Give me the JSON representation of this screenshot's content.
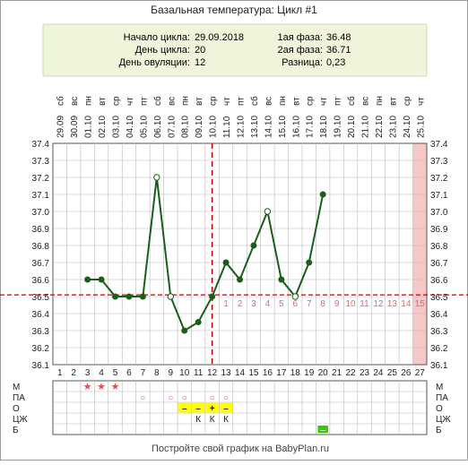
{
  "title": "Базальная температура: Цикл #1",
  "info": {
    "start_label": "Начало цикла:",
    "start_value": "29.09.2018",
    "day_label": "День цикла:",
    "day_value": "20",
    "ovulation_label": "День овуляции:",
    "ovulation_value": "12",
    "phase1_label": "1ая фаза:",
    "phase1_value": "36.48",
    "phase2_label": "2ая фаза:",
    "phase2_value": "36.71",
    "diff_label": "Разница:",
    "diff_value": "0,23"
  },
  "footer": "Постройте свой график на BabyPlan.ru",
  "colors": {
    "line": "#1a5e1a",
    "baseline": "#cc0000",
    "ovulation": "#cc0000",
    "highlight": "#f7c6c6",
    "info_bg": "#eef5da",
    "yellow": "#ffff00",
    "green": "#33cc00",
    "star": "#e05050",
    "grid": "#b8b8b8"
  },
  "chart_data": {
    "type": "line",
    "x": [
      1,
      2,
      3,
      4,
      5,
      6,
      7,
      8,
      9,
      10,
      11,
      12,
      13,
      14,
      15,
      16,
      17,
      18,
      19,
      20,
      21,
      22,
      23,
      24,
      25,
      26,
      27
    ],
    "weekdays": [
      "сб",
      "вс",
      "пн",
      "вт",
      "ср",
      "чт",
      "пт",
      "сб",
      "вс",
      "пн",
      "вт",
      "ср",
      "чт",
      "пт",
      "сб",
      "вс",
      "пн",
      "вт",
      "ср",
      "чт",
      "пт",
      "сб",
      "вс",
      "пн",
      "вт",
      "ср",
      "чт"
    ],
    "dates": [
      "29.09",
      "30.09",
      "01.10",
      "02.10",
      "03.10",
      "04.10",
      "05.10",
      "06.10",
      "07.10",
      "08.10",
      "09.10",
      "10.10",
      "11.10",
      "12.10",
      "13.10",
      "14.10",
      "15.10",
      "16.10",
      "17.10",
      "18.10",
      "19.10",
      "20.10",
      "21.10",
      "22.10",
      "23.10",
      "24.10",
      "25.10"
    ],
    "temperature": [
      null,
      null,
      36.6,
      36.6,
      36.5,
      36.5,
      36.5,
      37.2,
      36.5,
      36.3,
      36.35,
      36.5,
      36.7,
      36.6,
      36.8,
      37.0,
      36.6,
      36.5,
      36.7,
      37.1,
      null,
      null,
      null,
      null,
      null,
      null,
      null
    ],
    "open_markers": [
      8,
      9,
      16,
      18
    ],
    "ylim": [
      36.1,
      37.4
    ],
    "yticks": [
      "36.1",
      "36.2",
      "36.3",
      "36.4",
      "36.5",
      "36.6",
      "36.7",
      "36.8",
      "36.9",
      "37.0",
      "37.1",
      "37.2",
      "37.3",
      "37.4"
    ],
    "baseline": 36.51,
    "ovulation_day": 12,
    "phase2_labels": [
      "1",
      "2",
      "3",
      "4",
      "5",
      "6",
      "7",
      "8",
      "9",
      "10",
      "11",
      "12",
      "13",
      "14",
      "15"
    ],
    "highlight_day": 27,
    "grid": true
  },
  "table": {
    "rows": [
      {
        "label": "М",
        "cells": [
          {
            "day": 3,
            "text": "★"
          },
          {
            "day": 4,
            "text": "★"
          },
          {
            "day": 5,
            "text": "★"
          }
        ]
      },
      {
        "label": "ПА",
        "cells": [
          {
            "day": 7,
            "text": "○"
          },
          {
            "day": 9,
            "text": "○"
          },
          {
            "day": 10,
            "text": "○"
          },
          {
            "day": 12,
            "text": "○"
          },
          {
            "day": 13,
            "text": "○"
          }
        ]
      },
      {
        "label": "О",
        "cells": [
          {
            "day": 10,
            "text": "–",
            "bg": "yellow"
          },
          {
            "day": 11,
            "text": "–",
            "bg": "yellow"
          },
          {
            "day": 12,
            "text": "+",
            "bg": "yellow"
          },
          {
            "day": 13,
            "text": "–",
            "bg": "yellow"
          }
        ]
      },
      {
        "label": "ЦЖ",
        "cells": [
          {
            "day": 11,
            "text": "К"
          },
          {
            "day": 12,
            "text": "К"
          },
          {
            "day": 13,
            "text": "К"
          }
        ]
      },
      {
        "label": "Б",
        "cells": [
          {
            "day": 20,
            "text": "–",
            "bg": "green"
          }
        ]
      }
    ]
  }
}
